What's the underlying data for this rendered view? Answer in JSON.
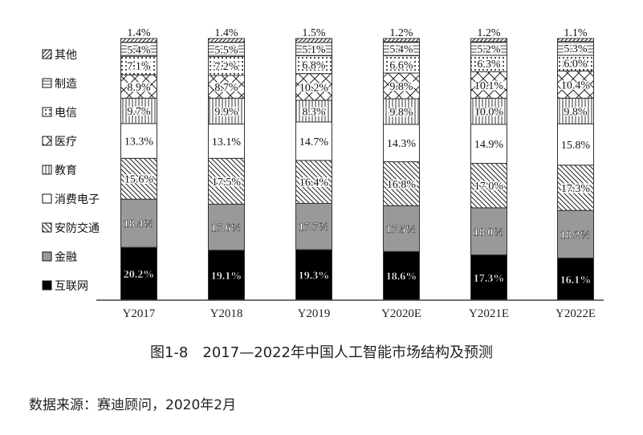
{
  "chart_data": {
    "type": "bar",
    "stacked": true,
    "categories": [
      "Y2017",
      "Y2018",
      "Y2019",
      "Y2020E",
      "Y2021E",
      "Y2022E"
    ],
    "ylim": [
      0,
      100
    ],
    "grid": false,
    "legend_position": "left",
    "value_suffix": "%",
    "series": [
      {
        "name": "互联网",
        "pattern": "solid-black",
        "values": [
          20.2,
          19.1,
          19.3,
          18.6,
          17.3,
          16.1
        ]
      },
      {
        "name": "金融",
        "pattern": "solid-gray",
        "values": [
          18.4,
          17.6,
          17.7,
          17.5,
          18.0,
          18.2
        ]
      },
      {
        "name": "安防交通",
        "pattern": "diagonal-back",
        "values": [
          15.6,
          17.5,
          16.4,
          16.8,
          17.0,
          17.3
        ]
      },
      {
        "name": "消费电子",
        "pattern": "white",
        "values": [
          13.3,
          13.1,
          14.7,
          14.3,
          14.9,
          15.8
        ]
      },
      {
        "name": "教育",
        "pattern": "vertical-lines",
        "values": [
          9.7,
          9.9,
          8.3,
          9.8,
          10.0,
          9.8
        ]
      },
      {
        "name": "医疗",
        "pattern": "crosshatch",
        "values": [
          8.9,
          8.7,
          10.2,
          9.8,
          10.1,
          10.4
        ]
      },
      {
        "name": "电信",
        "pattern": "dots",
        "values": [
          7.1,
          7.2,
          6.8,
          6.6,
          6.3,
          6.0
        ]
      },
      {
        "name": "制造",
        "pattern": "horizontal-lines",
        "values": [
          5.4,
          5.5,
          5.1,
          5.4,
          5.2,
          5.3
        ]
      },
      {
        "name": "其他",
        "pattern": "diagonal-forward",
        "values": [
          1.4,
          1.4,
          1.5,
          1.2,
          1.2,
          1.1
        ]
      }
    ]
  },
  "caption": "图1-8　2017—2022年中国人工智能市场结构及预测",
  "source": "数据来源：赛迪顾问，2020年2月"
}
